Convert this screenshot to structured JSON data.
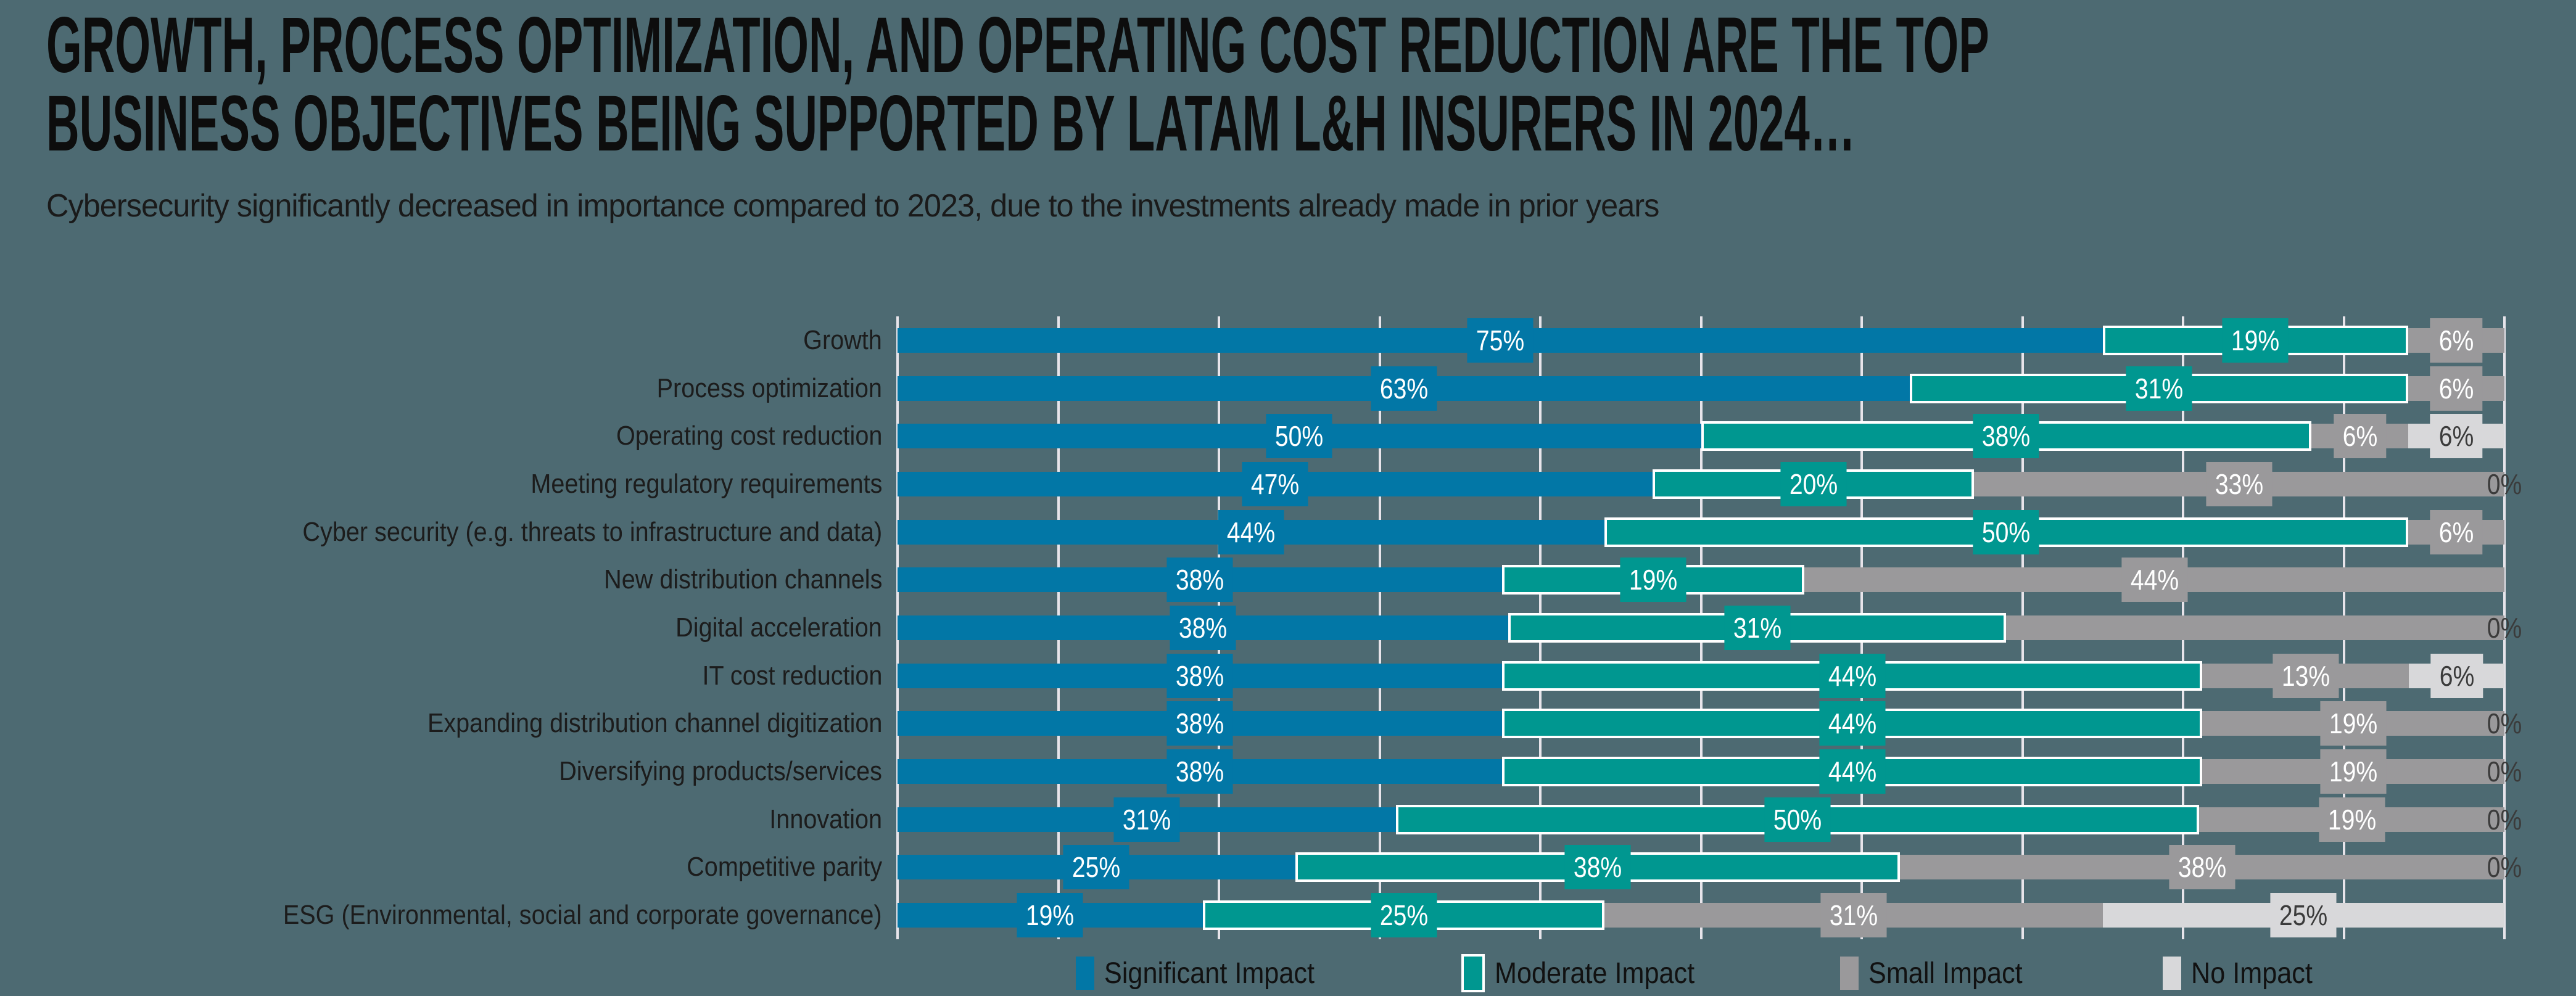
{
  "title": {
    "line1": "GROWTH, PROCESS OPTIMIZATION, AND OPERATING COST REDUCTION ARE THE TOP",
    "line2": "BUSINESS OBJECTIVES BEING SUPPORTED BY LATAM L&H INSURERS IN 2024…"
  },
  "subtitle": "Cybersecurity significantly decreased in importance compared to 2023, due to the investments already made in prior years",
  "colors": {
    "background": "#4D6A72",
    "significant": "#0277A6",
    "moderate": "#009790",
    "small": "#9A999B",
    "none": "#D8D8DA",
    "gridline": "#E7E4EA",
    "label_light_text": "#FFFFFF",
    "label_dark_text": "#3B3B3B"
  },
  "legend": [
    {
      "key": "significant",
      "label": "Significant Impact"
    },
    {
      "key": "moderate",
      "label": "Moderate Impact"
    },
    {
      "key": "small",
      "label": "Small Impact"
    },
    {
      "key": "none",
      "label": "No Impact"
    }
  ],
  "chart_data": {
    "type": "bar",
    "stacked": true,
    "horizontal": true,
    "units": "percent",
    "x_axis": {
      "min": 0,
      "max": 100,
      "gridline_step": 10,
      "tick_labels_visible": false
    },
    "legend_position": "bottom-center",
    "categories": [
      "Growth",
      "Process optimization",
      "Operating cost reduction",
      "Meeting regulatory requirements",
      "Cyber security (e.g. threats to infrastructure and data)",
      "New distribution channels",
      "Digital acceleration",
      "IT cost reduction",
      "Expanding distribution channel digitization",
      "Diversifying products/services",
      "Innovation",
      "Competitive parity",
      "ESG (Environmental, social and corporate governance)"
    ],
    "series": [
      {
        "key": "significant",
        "name": "Significant Impact",
        "values": [
          75,
          63,
          50,
          47,
          44,
          38,
          38,
          38,
          38,
          38,
          31,
          25,
          19
        ],
        "data_labels": [
          "75%",
          "63%",
          "50%",
          "47%",
          "44%",
          "38%",
          "38%",
          "38%",
          "38%",
          "38%",
          "31%",
          "25%",
          "19%"
        ]
      },
      {
        "key": "moderate",
        "name": "Moderate Impact",
        "values": [
          19,
          31,
          38,
          20,
          50,
          19,
          31,
          44,
          44,
          44,
          50,
          38,
          25
        ],
        "data_labels": [
          "19%",
          "31%",
          "38%",
          "20%",
          "50%",
          "19%",
          "31%",
          "44%",
          "44%",
          "44%",
          "50%",
          "38%",
          "25%"
        ]
      },
      {
        "key": "small",
        "name": "Small Impact",
        "values": [
          6,
          6,
          6,
          33,
          6,
          44,
          31,
          13,
          19,
          19,
          19,
          38,
          31
        ],
        "data_labels": [
          "6%",
          "6%",
          "6%",
          "33%",
          "6%",
          "44%",
          null,
          "13%",
          "19%",
          "19%",
          "19%",
          "38%",
          "31%"
        ]
      },
      {
        "key": "none",
        "name": "No Impact",
        "values": [
          0,
          0,
          6,
          0,
          0,
          0,
          0,
          6,
          0,
          0,
          0,
          0,
          25
        ],
        "data_labels": [
          null,
          null,
          "6%",
          null,
          null,
          null,
          null,
          "6%",
          null,
          null,
          null,
          null,
          "25%"
        ]
      }
    ],
    "zero_labels": [
      null,
      null,
      null,
      "0%",
      null,
      null,
      "0%",
      null,
      "0%",
      "0%",
      "0%",
      "0%",
      null
    ]
  }
}
